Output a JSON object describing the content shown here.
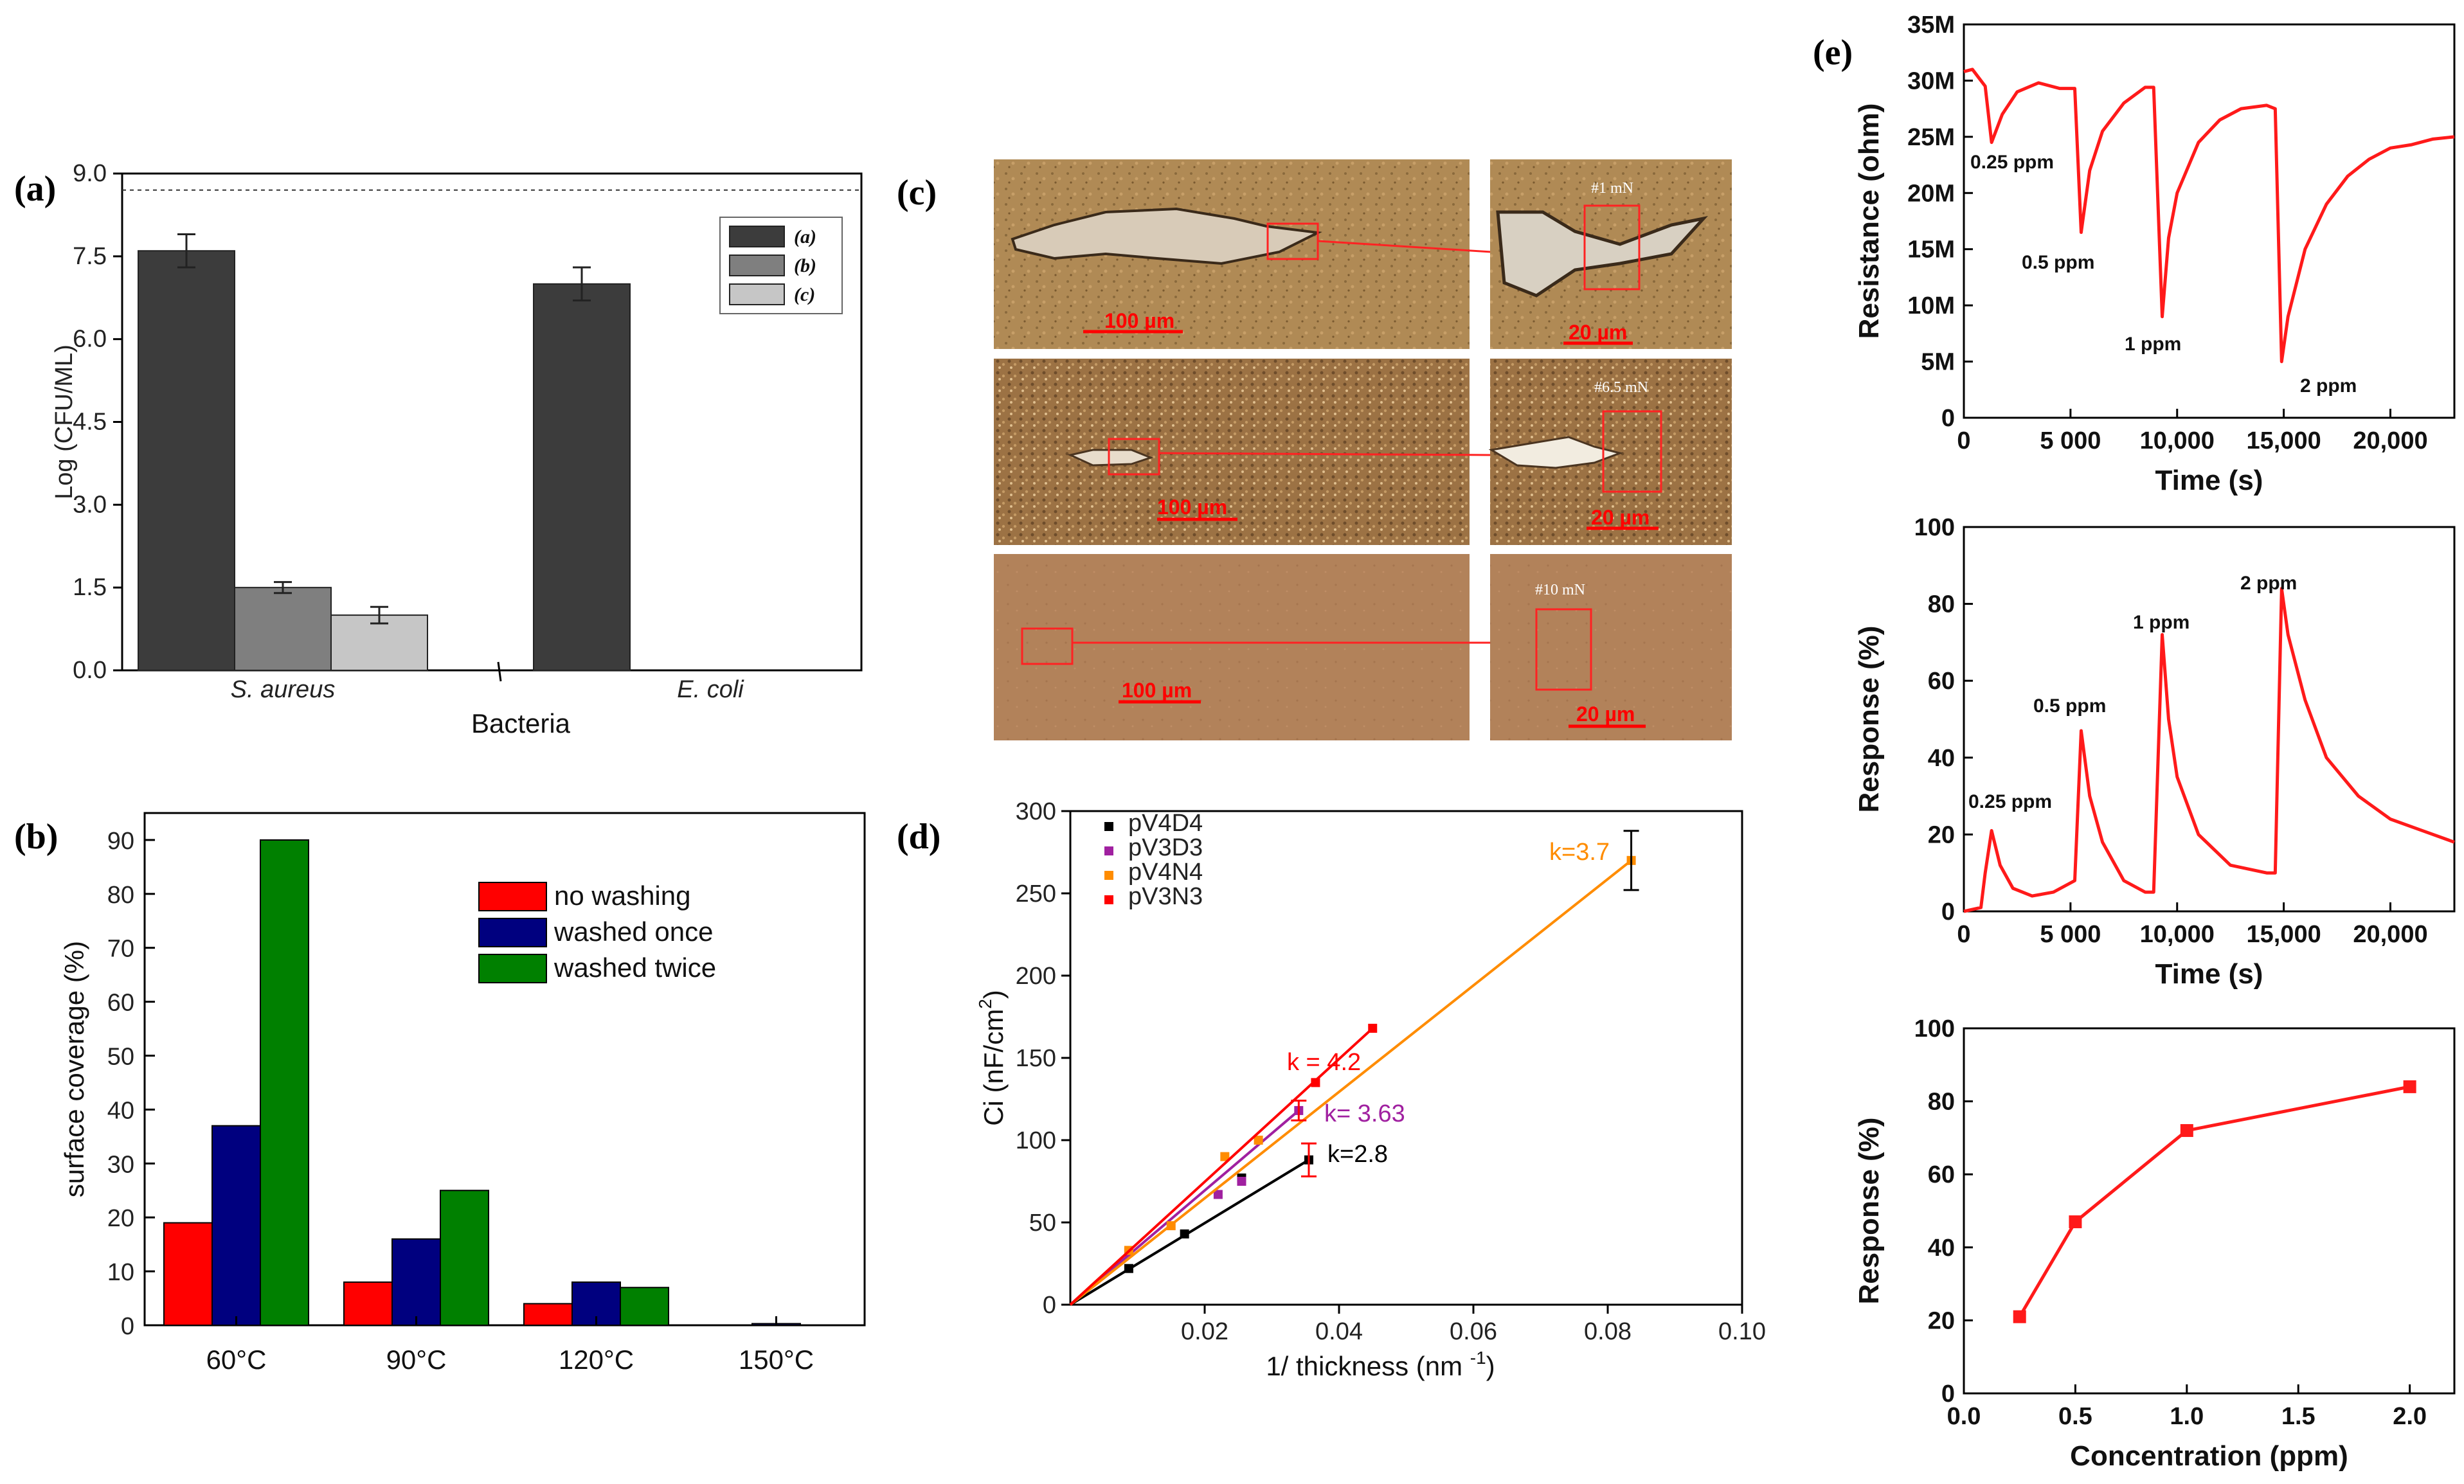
{
  "panel_letters": {
    "a": "(a)",
    "b": "(b)",
    "c": "(c)",
    "d": "(d)",
    "e": "(e)"
  },
  "colors": {
    "dark_bar": "#3c3c3c",
    "mid_bar": "#7f7f7f",
    "light_bar": "#c6c6c6",
    "red": "#ff0000",
    "blue": "#00007f",
    "green": "#008000",
    "orange": "#ff8c00",
    "purple": "#a020a0",
    "black": "#000000",
    "sensor_red": "#ff1a1a"
  },
  "chart_data": [
    {
      "id": "a",
      "type": "bar",
      "xlabel": "Bacteria",
      "ylabel": "Log (CFU/ML)",
      "ylim": [
        0,
        9
      ],
      "yticks": [
        "0.0",
        "1.5",
        "3.0",
        "4.5",
        "6.0",
        "7.5",
        "9.0"
      ],
      "reference_line": 8.7,
      "categories": [
        "S. aureus",
        "E. coli"
      ],
      "series": [
        {
          "name": "(a)",
          "values": [
            7.6,
            7.0
          ],
          "errors": [
            0.3,
            0.3
          ]
        },
        {
          "name": "(b)",
          "values": [
            1.5,
            0
          ],
          "errors": [
            0.1,
            0
          ]
        },
        {
          "name": "(c)",
          "values": [
            1.0,
            0
          ],
          "errors": [
            0.15,
            0
          ]
        }
      ],
      "legend": [
        "(a)",
        "(b)",
        "(c)"
      ]
    },
    {
      "id": "b",
      "type": "bar",
      "xlabel": "",
      "ylabel": "surface coverage (%)",
      "ylim": [
        0,
        95
      ],
      "yticks": [
        "0",
        "10",
        "20",
        "30",
        "40",
        "50",
        "60",
        "70",
        "80",
        "90"
      ],
      "categories": [
        "60°C",
        "90°C",
        "120°C",
        "150°C"
      ],
      "series": [
        {
          "name": "no washing",
          "values": [
            19,
            8,
            4,
            0
          ]
        },
        {
          "name": "washed once",
          "values": [
            37,
            16,
            8,
            0.3
          ]
        },
        {
          "name": "washed twice",
          "values": [
            90,
            25,
            7,
            0
          ]
        }
      ]
    },
    {
      "id": "d",
      "type": "scatter",
      "xlabel": "1/ thickness (nm ",
      "xlabel_sup": "-1",
      "xlabel_end": ")",
      "ylabel": "Ci (nF/cm",
      "ylabel_sup": "2",
      "ylabel_end": ")",
      "xlim": [
        0,
        0.1
      ],
      "ylim": [
        0,
        300
      ],
      "xticks": [
        "0.02",
        "0.04",
        "0.06",
        "0.08",
        "0.10"
      ],
      "yticks": [
        "0",
        "50",
        "100",
        "150",
        "200",
        "250",
        "300"
      ],
      "series": [
        {
          "name": "pV4D4",
          "x": [
            0.0087,
            0.017,
            0.0255,
            0.0355
          ],
          "y": [
            22,
            43,
            77,
            88
          ],
          "fit_k": "k=2.8"
        },
        {
          "name": "pV3D3",
          "x": [
            0.0087,
            0.022,
            0.0255,
            0.034
          ],
          "y": [
            32,
            67,
            75,
            118
          ],
          "fit_k": "k= 3.63"
        },
        {
          "name": "pV4N4",
          "x": [
            0.0087,
            0.015,
            0.023,
            0.028,
            0.0835
          ],
          "y": [
            33,
            48,
            90,
            100,
            270
          ],
          "fit_k": "k=3.7"
        },
        {
          "name": "pV3N3",
          "x": [
            0.0365,
            0.045
          ],
          "y": [
            135,
            168
          ],
          "fit_k": "k = 4.2"
        }
      ]
    },
    {
      "id": "e1",
      "type": "line",
      "xlabel": "Time (s)",
      "ylabel": "Resistance (ohm)",
      "xlim": [
        0,
        23000
      ],
      "ylim": [
        0,
        35
      ],
      "xticks": [
        "0",
        "5 000",
        "10,000",
        "15,000",
        "20,000"
      ],
      "yticks": [
        "0",
        "5M",
        "10M",
        "15M",
        "20M",
        "25M",
        "30M",
        "35M"
      ],
      "annotations": [
        "0.25 ppm",
        "0.5 ppm",
        "1 ppm",
        "2 ppm"
      ],
      "x": [
        0,
        400,
        1000,
        1300,
        1800,
        2500,
        3500,
        4500,
        5200,
        5500,
        5900,
        6500,
        7500,
        8500,
        8900,
        9300,
        9600,
        10000,
        11000,
        12000,
        13000,
        14200,
        14600,
        14900,
        15200,
        16000,
        17000,
        18000,
        19000,
        20000,
        21000,
        22000,
        23000
      ],
      "y": [
        30.8,
        31.0,
        29.5,
        24.5,
        27.0,
        29.0,
        29.8,
        29.3,
        29.3,
        16.5,
        22.0,
        25.5,
        28.0,
        29.4,
        29.4,
        9.0,
        16.0,
        20.0,
        24.5,
        26.5,
        27.5,
        27.8,
        27.5,
        5.0,
        9.0,
        15.0,
        19.0,
        21.5,
        23.0,
        24.0,
        24.3,
        24.8,
        25.0
      ]
    },
    {
      "id": "e2",
      "type": "line",
      "xlabel": "Time (s)",
      "ylabel": "Response (%)",
      "xlim": [
        0,
        23000
      ],
      "ylim": [
        0,
        100
      ],
      "xticks": [
        "0",
        "5 000",
        "10,000",
        "15,000",
        "20,000"
      ],
      "yticks": [
        "0",
        "20",
        "40",
        "60",
        "80",
        "100"
      ],
      "annotations": [
        "0.25 ppm",
        "0.5 ppm",
        "1 ppm",
        "2 ppm"
      ],
      "x": [
        0,
        800,
        1000,
        1300,
        1700,
        2300,
        3200,
        4200,
        5200,
        5500,
        5900,
        6500,
        7500,
        8500,
        8900,
        9300,
        9600,
        10000,
        11000,
        12500,
        14200,
        14600,
        14900,
        15200,
        16000,
        17000,
        18500,
        20000,
        21500,
        23000
      ],
      "y": [
        0,
        1,
        10,
        21,
        12,
        6,
        4,
        5,
        8,
        47,
        30,
        18,
        8,
        5,
        5,
        72,
        50,
        35,
        20,
        12,
        10,
        10,
        84,
        72,
        55,
        40,
        30,
        24,
        21,
        18
      ]
    },
    {
      "id": "e3",
      "type": "line",
      "xlabel": "Concentration (ppm)",
      "ylabel": "Response (%)",
      "xlim": [
        0,
        2.2
      ],
      "ylim": [
        0,
        100
      ],
      "xticks": [
        "0.0",
        "0.5",
        "1.0",
        "1.5",
        "2.0"
      ],
      "yticks": [
        "0",
        "20",
        "40",
        "60",
        "80",
        "100"
      ],
      "x": [
        0.25,
        0.5,
        1.0,
        2.0
      ],
      "y": [
        21,
        47,
        72,
        84
      ]
    }
  ],
  "micrographs": {
    "panel_c_scale_large": "100 µm",
    "panel_c_scale_small": "20 µm",
    "loads": [
      "#1 mN",
      "#6.5 mN",
      "#10 mN"
    ]
  }
}
